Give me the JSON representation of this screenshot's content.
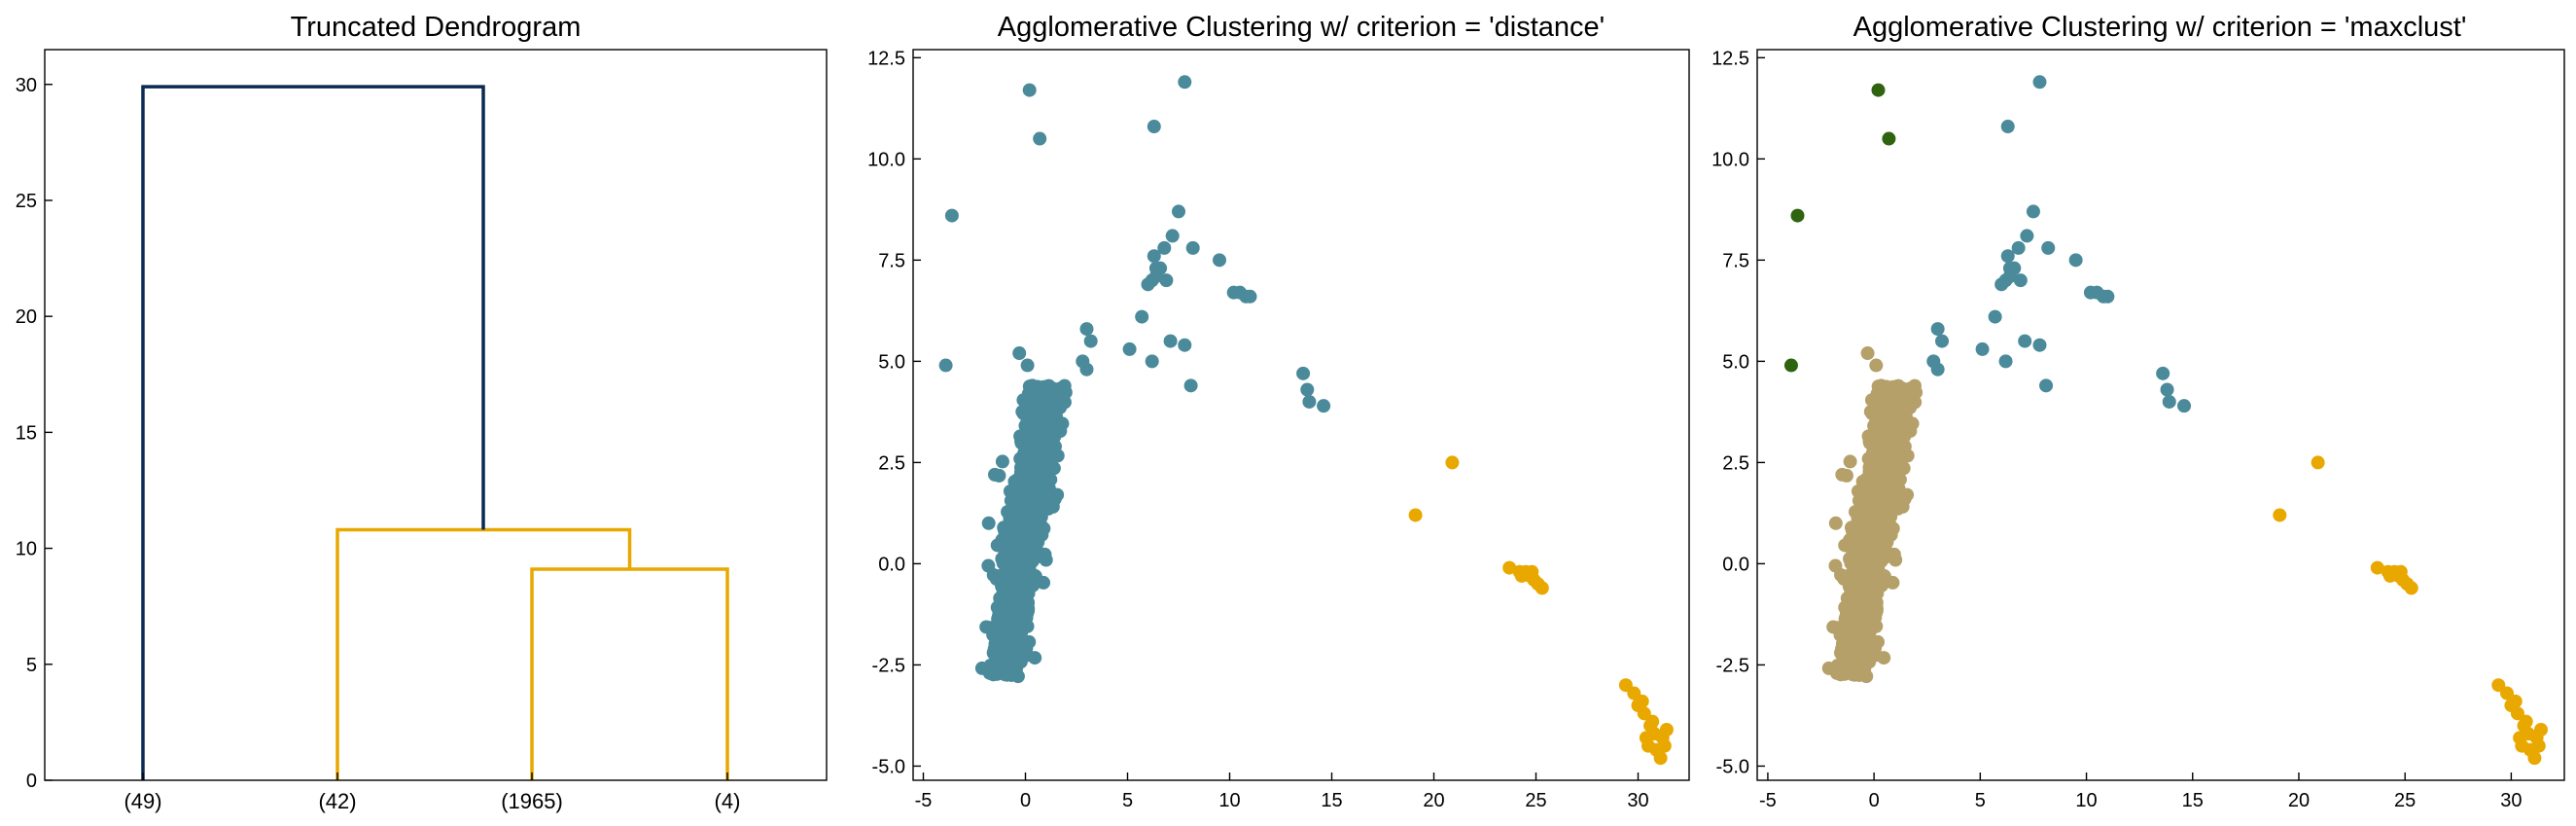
{
  "chart_data": [
    {
      "type": "dendrogram",
      "title": "Truncated Dendrogram",
      "xlabel": "",
      "ylabel": "",
      "ylim": [
        0,
        31.5
      ],
      "yticks": [
        0,
        5,
        10,
        15,
        20,
        25,
        30
      ],
      "leaf_labels": [
        "(49)",
        "(42)",
        "(1965)",
        "(4)"
      ],
      "links": [
        {
          "x": [
            2,
            2,
            3,
            3
          ],
          "y": [
            0,
            9.1,
            9.1,
            0
          ],
          "color": "#E8A800"
        },
        {
          "x": [
            1,
            1,
            2.5,
            2.5
          ],
          "y": [
            0,
            10.8,
            10.8,
            9.1
          ],
          "color": "#E8A800"
        },
        {
          "x": [
            0,
            0,
            1.75,
            1.75
          ],
          "y": [
            0,
            29.9,
            29.9,
            10.8
          ],
          "color": "#0A2A52"
        }
      ],
      "grid": false
    },
    {
      "type": "scatter",
      "title": "Agglomerative Clustering w/ criterion = 'distance'",
      "xlabel": "",
      "ylabel": "",
      "xlim": [
        -5.5,
        32.5
      ],
      "ylim": [
        -5.35,
        12.7
      ],
      "xticks": [
        -5,
        0,
        5,
        10,
        15,
        20,
        25,
        30
      ],
      "yticks": [
        -5.0,
        -2.5,
        0.0,
        2.5,
        5.0,
        7.5,
        10.0,
        12.5
      ],
      "grid": false,
      "series": [
        {
          "color": "#4A8A9A",
          "dense_region": {
            "x_center": 0.0,
            "x_spread": 0.9,
            "y_min": -2.8,
            "y_max": 4.4,
            "slope": 1.85,
            "count": 1965
          },
          "points": [
            [
              -3.9,
              4.9
            ],
            [
              -3.6,
              8.6
            ],
            [
              0.2,
              11.7
            ],
            [
              0.7,
              10.5
            ],
            [
              6.3,
              10.8
            ],
            [
              7.8,
              11.9
            ],
            [
              5.1,
              5.3
            ],
            [
              5.7,
              6.1
            ],
            [
              7.1,
              5.5
            ],
            [
              7.8,
              5.4
            ],
            [
              8.1,
              4.4
            ],
            [
              6.2,
              5.0
            ],
            [
              6.0,
              6.9
            ],
            [
              6.2,
              7.0
            ],
            [
              6.4,
              7.1
            ],
            [
              6.6,
              7.3
            ],
            [
              6.3,
              7.6
            ],
            [
              6.8,
              7.8
            ],
            [
              7.2,
              8.1
            ],
            [
              7.5,
              8.7
            ],
            [
              6.4,
              7.3
            ],
            [
              6.9,
              7.0
            ],
            [
              8.2,
              7.8
            ],
            [
              9.5,
              7.5
            ],
            [
              10.2,
              6.7
            ],
            [
              10.5,
              6.7
            ],
            [
              10.8,
              6.6
            ],
            [
              11.0,
              6.6
            ],
            [
              3.0,
              5.8
            ],
            [
              3.2,
              5.5
            ],
            [
              2.8,
              5.0
            ],
            [
              3.0,
              4.8
            ],
            [
              13.6,
              4.7
            ],
            [
              13.8,
              4.3
            ],
            [
              13.9,
              4.0
            ],
            [
              14.6,
              3.9
            ],
            [
              -0.3,
              5.2
            ],
            [
              0.1,
              4.9
            ],
            [
              -1.8,
              1.0
            ],
            [
              -1.5,
              2.2
            ]
          ]
        },
        {
          "color": "#E8A800",
          "points": [
            [
              19.1,
              1.2
            ],
            [
              20.9,
              2.5
            ],
            [
              23.7,
              -0.1
            ],
            [
              24.2,
              -0.2
            ],
            [
              24.5,
              -0.2
            ],
            [
              24.7,
              -0.3
            ],
            [
              24.9,
              -0.4
            ],
            [
              25.1,
              -0.5
            ],
            [
              25.3,
              -0.6
            ],
            [
              24.3,
              -0.3
            ],
            [
              24.8,
              -0.2
            ],
            [
              29.4,
              -3.0
            ],
            [
              29.8,
              -3.2
            ],
            [
              30.0,
              -3.5
            ],
            [
              30.3,
              -3.7
            ],
            [
              30.6,
              -4.0
            ],
            [
              30.8,
              -4.2
            ],
            [
              31.2,
              -4.3
            ],
            [
              31.4,
              -4.1
            ],
            [
              30.5,
              -4.5
            ],
            [
              30.9,
              -4.6
            ],
            [
              31.1,
              -4.8
            ],
            [
              30.7,
              -3.9
            ],
            [
              30.2,
              -3.4
            ],
            [
              31.3,
              -4.5
            ],
            [
              30.4,
              -4.3
            ]
          ]
        }
      ]
    },
    {
      "type": "scatter",
      "title": "Agglomerative Clustering w/ criterion = 'maxclust'",
      "xlabel": "",
      "ylabel": "",
      "xlim": [
        -5.5,
        32.5
      ],
      "ylim": [
        -5.35,
        12.7
      ],
      "xticks": [
        -5,
        0,
        5,
        10,
        15,
        20,
        25,
        30
      ],
      "yticks": [
        -5.0,
        -2.5,
        0.0,
        2.5,
        5.0,
        7.5,
        10.0,
        12.5
      ],
      "grid": false,
      "series": [
        {
          "color": "#B5A06A",
          "dense_region": {
            "x_center": 0.0,
            "x_spread": 0.9,
            "y_min": -2.8,
            "y_max": 4.4,
            "slope": 1.85,
            "count": 1965
          },
          "points": [
            [
              -0.3,
              5.2
            ],
            [
              0.1,
              4.9
            ],
            [
              -1.8,
              1.0
            ],
            [
              -1.5,
              2.2
            ]
          ]
        },
        {
          "color": "#2E6410",
          "points": [
            [
              -3.9,
              4.9
            ],
            [
              -3.6,
              8.6
            ],
            [
              0.2,
              11.7
            ],
            [
              0.7,
              10.5
            ]
          ]
        },
        {
          "color": "#4A8A9A",
          "points": [
            [
              6.3,
              10.8
            ],
            [
              7.8,
              11.9
            ],
            [
              5.1,
              5.3
            ],
            [
              5.7,
              6.1
            ],
            [
              7.1,
              5.5
            ],
            [
              7.8,
              5.4
            ],
            [
              8.1,
              4.4
            ],
            [
              6.2,
              5.0
            ],
            [
              6.0,
              6.9
            ],
            [
              6.2,
              7.0
            ],
            [
              6.4,
              7.1
            ],
            [
              6.6,
              7.3
            ],
            [
              6.3,
              7.6
            ],
            [
              6.8,
              7.8
            ],
            [
              7.2,
              8.1
            ],
            [
              7.5,
              8.7
            ],
            [
              6.4,
              7.3
            ],
            [
              6.9,
              7.0
            ],
            [
              8.2,
              7.8
            ],
            [
              9.5,
              7.5
            ],
            [
              10.2,
              6.7
            ],
            [
              10.5,
              6.7
            ],
            [
              10.8,
              6.6
            ],
            [
              11.0,
              6.6
            ],
            [
              3.0,
              5.8
            ],
            [
              3.2,
              5.5
            ],
            [
              2.8,
              5.0
            ],
            [
              3.0,
              4.8
            ],
            [
              13.6,
              4.7
            ],
            [
              13.8,
              4.3
            ],
            [
              13.9,
              4.0
            ],
            [
              14.6,
              3.9
            ]
          ]
        },
        {
          "color": "#E8A800",
          "points": [
            [
              19.1,
              1.2
            ],
            [
              20.9,
              2.5
            ],
            [
              23.7,
              -0.1
            ],
            [
              24.2,
              -0.2
            ],
            [
              24.5,
              -0.2
            ],
            [
              24.7,
              -0.3
            ],
            [
              24.9,
              -0.4
            ],
            [
              25.1,
              -0.5
            ],
            [
              25.3,
              -0.6
            ],
            [
              24.3,
              -0.3
            ],
            [
              24.8,
              -0.2
            ],
            [
              29.4,
              -3.0
            ],
            [
              29.8,
              -3.2
            ],
            [
              30.0,
              -3.5
            ],
            [
              30.3,
              -3.7
            ],
            [
              30.6,
              -4.0
            ],
            [
              30.8,
              -4.2
            ],
            [
              31.2,
              -4.3
            ],
            [
              31.4,
              -4.1
            ],
            [
              30.5,
              -4.5
            ],
            [
              30.9,
              -4.6
            ],
            [
              31.1,
              -4.8
            ],
            [
              30.7,
              -3.9
            ],
            [
              30.2,
              -3.4
            ],
            [
              31.3,
              -4.5
            ],
            [
              30.4,
              -4.3
            ]
          ]
        }
      ]
    }
  ]
}
